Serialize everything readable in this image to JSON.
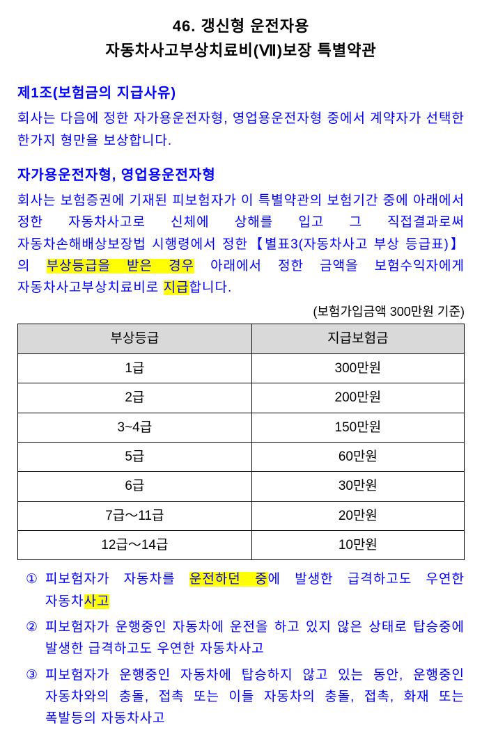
{
  "title_line1": "46. 갱신형 운전자용",
  "title_line2": "자동차사고부상치료비(Ⅶ)보장 특별약관",
  "article1_heading": "제1조(보험금의 지급사유)",
  "article1_body": "회사는 다음에 정한 자가용운전자형, 영업용운전자형 중에서 계약자가 선택한 한가지 형만을 보상합니다.",
  "sub_heading": "자가용운전자형, 영업용운전자형",
  "para2_part1": "회사는 보험증권에 기재된 피보험자가 이 특별약관의 보험기간 중에 아래에서 정한 자동차사고로 신체에 상해를 입고 그 직접결과로써 자동차손해배상보장법 시행령에서 정한【별표3(자동차사고 부상 등급표)】의 ",
  "para2_hl1": "부상등급을 받은 경우",
  "para2_part2": " 아래에서 정한 금액을 보험수익자에게 자동차사고부상치료비로 ",
  "para2_hl2": "지급",
  "para2_part3": "합니다.",
  "table_caption": "(보험가입금액 300만원 기준)",
  "table": {
    "head_col1": "부상등급",
    "head_col2": "지급보험금",
    "rows": [
      {
        "grade": "1급",
        "amount": "300만원"
      },
      {
        "grade": "2급",
        "amount": "200만원"
      },
      {
        "grade": "3~4급",
        "amount": "150만원"
      },
      {
        "grade": "5급",
        "amount": "60만원"
      },
      {
        "grade": "6급",
        "amount": "30만원"
      },
      {
        "grade": "7급～11급",
        "amount": "20만원"
      },
      {
        "grade": "12급～14급",
        "amount": "10만원"
      }
    ]
  },
  "cases": [
    {
      "num": "①",
      "p1": "피보험자가 자동차를 ",
      "h1": "운전하던 중",
      "p2": "에 발생한 급격하고도 우연한 자동차",
      "h2": "사고",
      "p3": ""
    },
    {
      "num": "②",
      "p1": "피보험자가 운행중인 자동차에 운전을 하고 있지 않은 상태로 탑승중에 발생한 급격하고도 우연한 자동차사고",
      "h1": "",
      "p2": "",
      "h2": "",
      "p3": ""
    },
    {
      "num": "③",
      "p1": "피보험자가 운행중인 자동차에 탑승하지 않고 있는 동안, 운행중인 자동차와의 충돌, 접촉 또는 이들 자동차의 충돌, 접촉, 화재 또는 폭발등의 자동차사고",
      "h1": "",
      "p2": "",
      "h2": "",
      "p3": ""
    }
  ]
}
